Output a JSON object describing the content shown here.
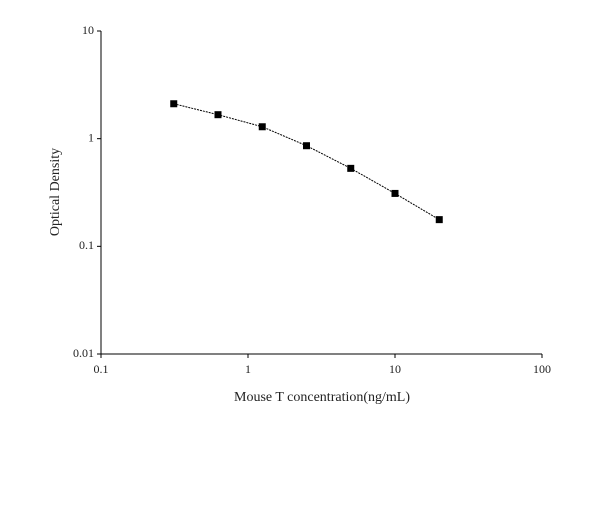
{
  "chart_data": {
    "type": "line",
    "x_label": "Mouse T concentration(ng/mL)",
    "y_label": "Optical Density",
    "x": [
      0.3125,
      0.625,
      1.25,
      2.5,
      5,
      10,
      20
    ],
    "values": [
      2.11,
      1.67,
      1.29,
      0.86,
      0.53,
      0.31,
      0.177
    ],
    "color": "#000000",
    "xscale": "log",
    "yscale": "log",
    "xlim": [
      0.1,
      100
    ],
    "xticks": [
      0.1,
      1,
      10,
      100
    ],
    "ylim": [
      0.01,
      10
    ],
    "yticks": [
      0.01,
      0.1,
      1,
      10
    ]
  }
}
